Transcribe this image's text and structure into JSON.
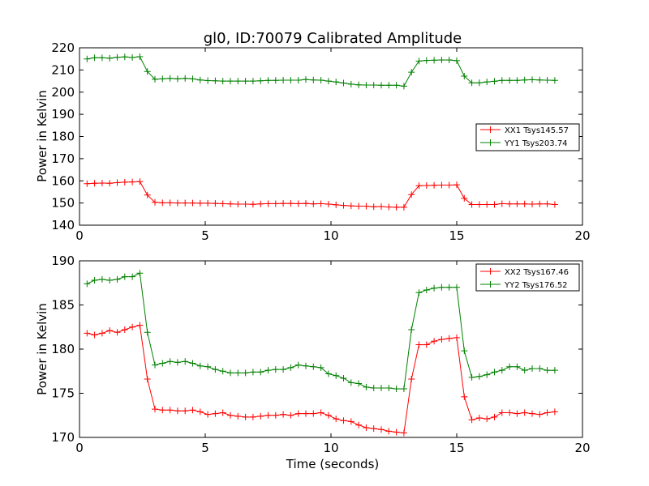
{
  "chart_data": [
    {
      "type": "line",
      "title": "gl0, ID:70079 Calibrated Amplitude",
      "xlabel": "",
      "ylabel": "Power in Kelvin",
      "xlim": [
        0,
        20
      ],
      "ylim": [
        140,
        220
      ],
      "xticks": [
        "0",
        "5",
        "10",
        "15",
        "20"
      ],
      "yticks": [
        "140",
        "150",
        "160",
        "170",
        "180",
        "190",
        "200",
        "210",
        "220"
      ],
      "legend": "center-right",
      "x": [
        0.3,
        0.6,
        0.9,
        1.2,
        1.5,
        1.8,
        2.1,
        2.4,
        2.7,
        3.0,
        3.3,
        3.6,
        3.9,
        4.2,
        4.5,
        4.8,
        5.1,
        5.4,
        5.7,
        6.0,
        6.3,
        6.6,
        6.9,
        7.2,
        7.5,
        7.8,
        8.1,
        8.4,
        8.7,
        9.0,
        9.3,
        9.6,
        9.9,
        10.2,
        10.5,
        10.8,
        11.1,
        11.4,
        11.7,
        12.0,
        12.3,
        12.6,
        12.9,
        13.2,
        13.5,
        13.8,
        14.1,
        14.4,
        14.7,
        15.0,
        15.3,
        15.6,
        15.9,
        16.2,
        16.5,
        16.8,
        17.1,
        17.4,
        17.7,
        18.0,
        18.3,
        18.6,
        18.9
      ],
      "series": [
        {
          "name": "XX1 Tsys145.57",
          "color": "#ff0000",
          "values": [
            158.7,
            158.9,
            159.0,
            158.9,
            159.2,
            159.4,
            159.5,
            159.7,
            153.6,
            150.3,
            150.1,
            150.1,
            150.0,
            150.0,
            150.0,
            149.9,
            149.9,
            149.8,
            149.7,
            149.6,
            149.5,
            149.5,
            149.4,
            149.6,
            149.7,
            149.7,
            149.8,
            149.8,
            149.7,
            149.8,
            149.6,
            149.7,
            149.5,
            149.2,
            148.9,
            148.7,
            148.6,
            148.6,
            148.3,
            148.4,
            148.2,
            148.1,
            148.1,
            153.8,
            157.8,
            157.9,
            158.0,
            158.1,
            158.1,
            158.2,
            152.1,
            149.3,
            149.3,
            149.3,
            149.3,
            149.7,
            149.6,
            149.6,
            149.6,
            149.5,
            149.6,
            149.6,
            149.3
          ]
        },
        {
          "name": "YY1 Tsys203.74",
          "color": "#008000",
          "values": [
            215.0,
            215.5,
            215.5,
            215.3,
            215.7,
            215.9,
            215.6,
            216.0,
            209.3,
            205.8,
            206.0,
            206.2,
            206.0,
            206.2,
            206.0,
            205.5,
            205.2,
            205.1,
            205.0,
            205.0,
            205.0,
            205.0,
            205.0,
            205.1,
            205.3,
            205.3,
            205.4,
            205.4,
            205.4,
            205.7,
            205.5,
            205.4,
            205.0,
            204.6,
            204.1,
            203.6,
            203.3,
            203.2,
            203.2,
            203.1,
            203.1,
            203.1,
            202.7,
            209.0,
            214.0,
            214.3,
            214.4,
            214.5,
            214.5,
            214.2,
            207.2,
            204.2,
            204.2,
            204.6,
            204.9,
            205.3,
            205.3,
            205.3,
            205.5,
            205.6,
            205.5,
            205.4,
            205.3
          ]
        }
      ]
    },
    {
      "type": "line",
      "title": "",
      "xlabel": "Time (seconds)",
      "ylabel": "Power in Kelvin",
      "xlim": [
        0,
        20
      ],
      "ylim": [
        170,
        190
      ],
      "xticks": [
        "0",
        "5",
        "10",
        "15",
        "20"
      ],
      "yticks": [
        "170",
        "175",
        "180",
        "185",
        "190"
      ],
      "legend": "top-right",
      "x": [
        0.3,
        0.6,
        0.9,
        1.2,
        1.5,
        1.8,
        2.1,
        2.4,
        2.7,
        3.0,
        3.3,
        3.6,
        3.9,
        4.2,
        4.5,
        4.8,
        5.1,
        5.4,
        5.7,
        6.0,
        6.3,
        6.6,
        6.9,
        7.2,
        7.5,
        7.8,
        8.1,
        8.4,
        8.7,
        9.0,
        9.3,
        9.6,
        9.9,
        10.2,
        10.5,
        10.8,
        11.1,
        11.4,
        11.7,
        12.0,
        12.3,
        12.6,
        12.9,
        13.2,
        13.5,
        13.8,
        14.1,
        14.4,
        14.7,
        15.0,
        15.3,
        15.6,
        15.9,
        16.2,
        16.5,
        16.8,
        17.1,
        17.4,
        17.7,
        18.0,
        18.3,
        18.6,
        18.9
      ],
      "series": [
        {
          "name": "XX2 Tsys167.46",
          "color": "#ff0000",
          "values": [
            181.8,
            181.6,
            181.8,
            182.1,
            181.9,
            182.2,
            182.5,
            182.7,
            176.6,
            173.2,
            173.1,
            173.1,
            173.0,
            173.0,
            173.1,
            172.9,
            172.6,
            172.7,
            172.8,
            172.5,
            172.4,
            172.3,
            172.3,
            172.4,
            172.5,
            172.5,
            172.6,
            172.5,
            172.7,
            172.7,
            172.7,
            172.8,
            172.5,
            172.1,
            171.9,
            171.8,
            171.4,
            171.1,
            171.0,
            170.9,
            170.7,
            170.6,
            170.5,
            176.6,
            180.5,
            180.5,
            180.9,
            181.1,
            181.2,
            181.3,
            174.6,
            172.0,
            172.2,
            172.1,
            172.3,
            172.8,
            172.8,
            172.7,
            172.8,
            172.7,
            172.6,
            172.8,
            172.9
          ]
        },
        {
          "name": "YY2 Tsys176.52",
          "color": "#008000",
          "values": [
            187.4,
            187.8,
            187.9,
            187.8,
            187.9,
            188.2,
            188.2,
            188.6,
            181.9,
            178.2,
            178.4,
            178.6,
            178.5,
            178.6,
            178.4,
            178.1,
            178.0,
            177.7,
            177.5,
            177.3,
            177.3,
            177.3,
            177.4,
            177.4,
            177.6,
            177.7,
            177.7,
            177.9,
            178.2,
            178.1,
            178.0,
            177.9,
            177.2,
            177.0,
            176.7,
            176.2,
            176.1,
            175.7,
            175.6,
            175.6,
            175.6,
            175.5,
            175.5,
            182.2,
            186.4,
            186.7,
            186.9,
            187.0,
            187.0,
            187.0,
            179.8,
            176.8,
            176.9,
            177.1,
            177.4,
            177.6,
            178.0,
            178.0,
            177.6,
            177.8,
            177.8,
            177.6,
            177.6
          ]
        }
      ]
    }
  ]
}
